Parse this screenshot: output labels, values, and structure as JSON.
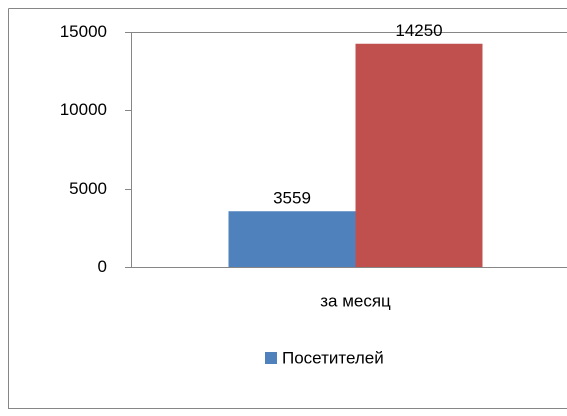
{
  "chart_data": {
    "type": "bar",
    "categories": [
      "за месяц"
    ],
    "series": [
      {
        "name": "Посетителей",
        "color": "#4f81bd",
        "values": [
          3559
        ]
      },
      {
        "color": "#c0504d",
        "values": [
          14250
        ]
      }
    ],
    "ylim": [
      0,
      15000
    ],
    "yticks": [
      0,
      5000,
      10000,
      15000
    ]
  }
}
